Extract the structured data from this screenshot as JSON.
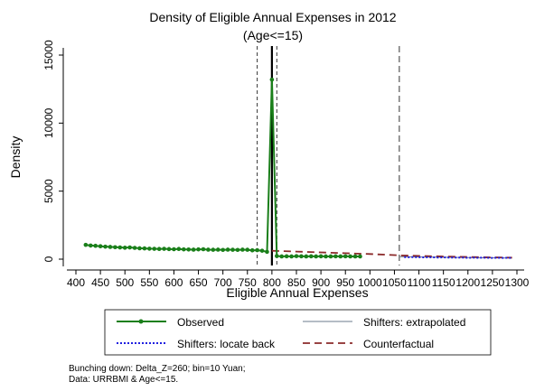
{
  "chart_data": {
    "type": "line",
    "title": "Density of Eligible Annual Expenses in 2012",
    "subtitle": "(Age<=15)",
    "xlabel": "Eligible Annual Expenses",
    "ylabel": "Density",
    "xlim": [
      400,
      1300
    ],
    "ylim": [
      0,
      15000
    ],
    "x_ticks": [
      400,
      450,
      500,
      550,
      600,
      650,
      700,
      750,
      800,
      850,
      900,
      950,
      1000,
      1050,
      1100,
      1150,
      1200,
      1250,
      1300
    ],
    "x_tick_labels": [
      "400",
      "450",
      "500",
      "550",
      "600",
      "650",
      "700",
      "750",
      "800",
      "850",
      "900",
      "950",
      "1000",
      "1050",
      "1100",
      "1150",
      "1200",
      "1250",
      "1300"
    ],
    "y_ticks": [
      0,
      5000,
      10000,
      15000
    ],
    "y_tick_labels": [
      "0",
      "5000",
      "10000",
      "15000"
    ],
    "grid": false,
    "vertical_lines": [
      {
        "x": 770,
        "style": "dashed-short"
      },
      {
        "x": 800,
        "style": "solid"
      },
      {
        "x": 810,
        "style": "dashed-short"
      },
      {
        "x": 1060,
        "style": "dashed-long"
      }
    ],
    "series": [
      {
        "name": "Observed",
        "color": "#1a7f1a",
        "style": "solid-markers",
        "x": [
          420,
          430,
          440,
          450,
          460,
          470,
          480,
          490,
          500,
          510,
          520,
          530,
          540,
          550,
          560,
          570,
          580,
          590,
          600,
          610,
          620,
          630,
          640,
          650,
          660,
          670,
          680,
          690,
          700,
          710,
          720,
          730,
          740,
          750,
          760,
          770,
          780,
          790,
          800,
          810,
          820,
          830,
          840,
          850,
          860,
          870,
          880,
          890,
          900,
          910,
          920,
          930,
          940,
          950,
          960,
          970,
          980
        ],
        "y": [
          1050,
          1000,
          980,
          950,
          920,
          900,
          880,
          860,
          840,
          860,
          830,
          800,
          790,
          770,
          760,
          750,
          760,
          740,
          730,
          750,
          720,
          710,
          700,
          720,
          730,
          700,
          690,
          700,
          680,
          700,
          690,
          680,
          700,
          690,
          650,
          660,
          620,
          540,
          13200,
          230,
          200,
          210,
          200,
          220,
          210,
          200,
          210,
          200,
          210,
          200,
          200,
          210,
          200,
          210,
          200,
          200,
          200
        ]
      },
      {
        "name": "Shifters: extrapolated",
        "color": "#6b7b8c",
        "style": "solid-thin",
        "x": [
          1060,
          1290
        ],
        "y": [
          180,
          80
        ]
      },
      {
        "name": "Shifters: locate back",
        "color": "#1f1fe0",
        "style": "dotted",
        "x": [
          1070,
          1080,
          1090,
          1100,
          1110,
          1120,
          1130,
          1140,
          1150,
          1160,
          1170,
          1180,
          1190,
          1200,
          1210,
          1220,
          1230,
          1240,
          1250,
          1260,
          1270,
          1280,
          1290
        ],
        "y": [
          150,
          140,
          150,
          140,
          130,
          140,
          130,
          120,
          130,
          120,
          110,
          120,
          110,
          100,
          110,
          100,
          110,
          100,
          90,
          100,
          90,
          100,
          90
        ]
      },
      {
        "name": "Counterfactual",
        "color": "#8b2a2a",
        "style": "dashed",
        "x": [
          800,
          850,
          900,
          950,
          1000,
          1050,
          1060,
          1100,
          1150,
          1200,
          1250,
          1290
        ],
        "y": [
          620,
          560,
          500,
          440,
          380,
          300,
          280,
          240,
          200,
          160,
          130,
          110
        ]
      }
    ],
    "legend_position": "bottom",
    "notes": [
      "Bunching down: Delta_Z=260; bin=10 Yuan;",
      "Data: URRBMI & Age<=15."
    ]
  }
}
